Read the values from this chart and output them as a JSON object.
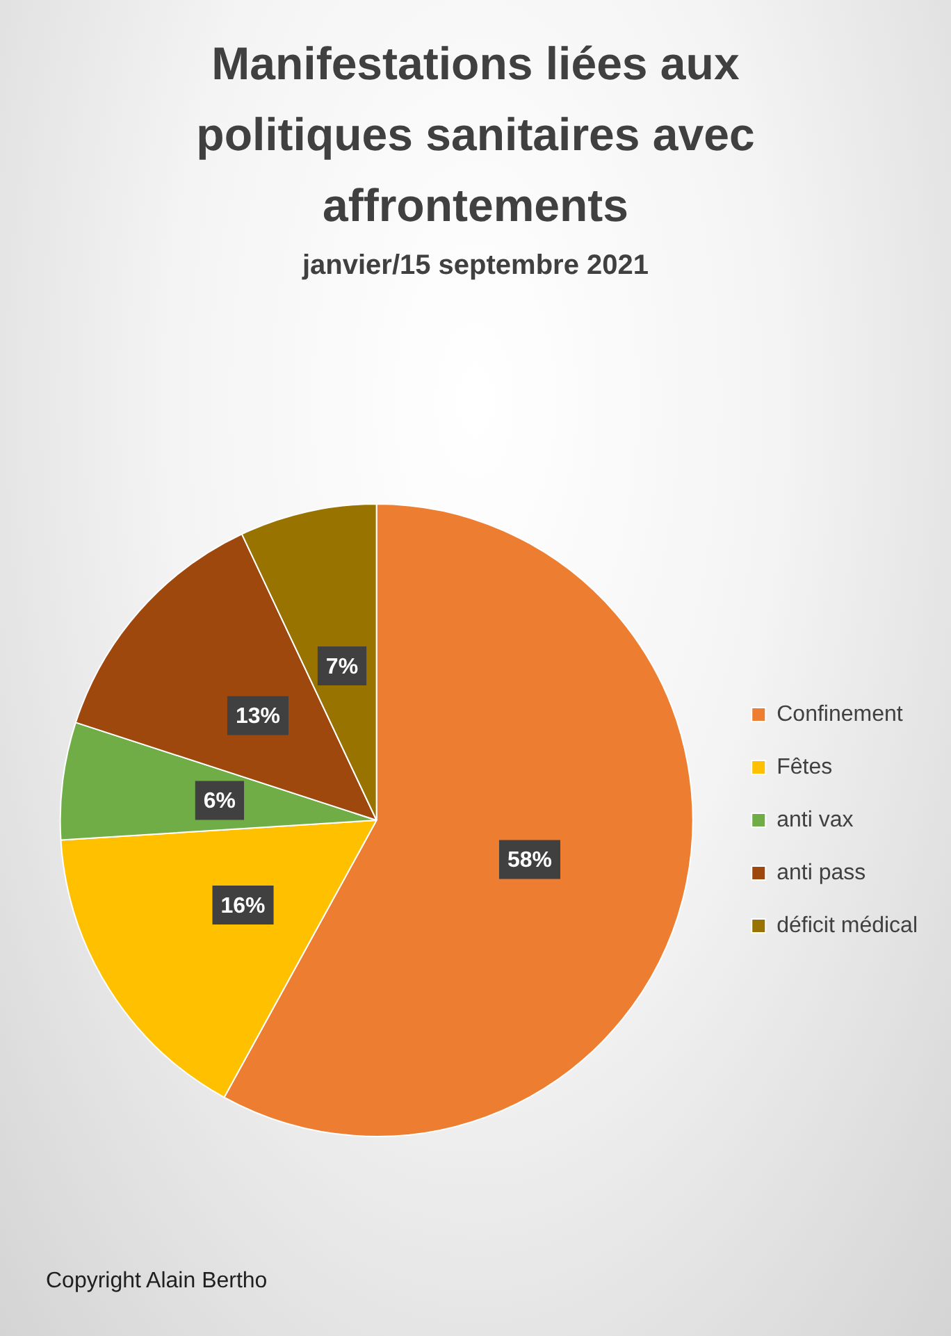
{
  "chart_data": {
    "type": "pie",
    "title": "Manifestations liées aux politiques sanitaires avec affrontements",
    "subtitle": "janvier/15 septembre 2021",
    "categories": [
      "Confinement",
      "Fêtes",
      "anti vax",
      "anti pass",
      "déficit médical"
    ],
    "values": [
      58,
      16,
      6,
      13,
      7
    ],
    "colors": [
      "#ed7d31",
      "#ffc000",
      "#70ad47",
      "#9e480e",
      "#997300"
    ],
    "value_labels": [
      "58%",
      "16%",
      "6%",
      "13%",
      "7%"
    ],
    "legend": "right",
    "annotations": [
      "Copyright Alain Bertho"
    ]
  }
}
